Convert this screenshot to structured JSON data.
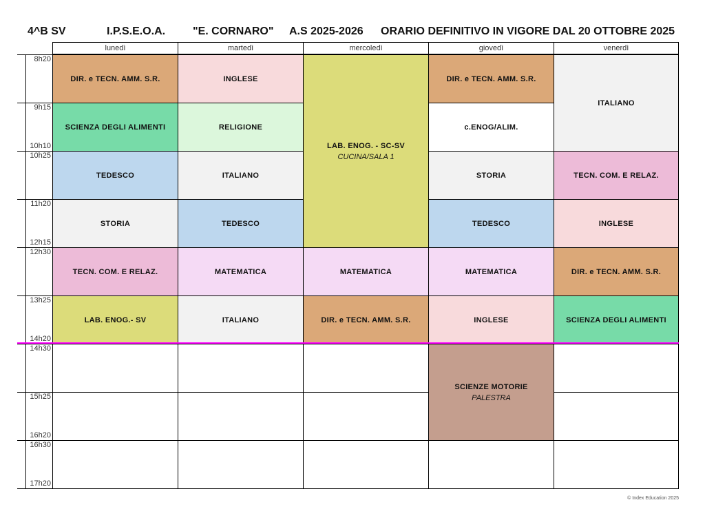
{
  "header": {
    "class": "4^B SV",
    "school_type": "I.P.S.E.O.A.",
    "school_name": "\"E. CORNARO\"",
    "year": "A.S 2025-2026",
    "notice": "ORARIO DEFINITIVO IN VIGORE DAL 20 OTTOBRE 2025"
  },
  "days": [
    "lunedì",
    "martedì",
    "mercoledì",
    "giovedì",
    "venerdì"
  ],
  "times": [
    {
      "label": "8h20",
      "row": 0,
      "pos": "top"
    },
    {
      "label": "9h15",
      "row": 1,
      "pos": "top"
    },
    {
      "label": "10h10",
      "row": 1,
      "pos": "bottom"
    },
    {
      "label": "10h25",
      "row": 2,
      "pos": "top"
    },
    {
      "label": "11h20",
      "row": 3,
      "pos": "top"
    },
    {
      "label": "12h15",
      "row": 3,
      "pos": "bottom"
    },
    {
      "label": "12h30",
      "row": 4,
      "pos": "top"
    },
    {
      "label": "13h25",
      "row": 5,
      "pos": "top"
    },
    {
      "label": "14h20",
      "row": 5,
      "pos": "bottom"
    },
    {
      "label": "14h30",
      "row": 6,
      "pos": "top"
    },
    {
      "label": "15h25",
      "row": 7,
      "pos": "top"
    },
    {
      "label": "16h20",
      "row": 7,
      "pos": "bottom"
    },
    {
      "label": "16h30",
      "row": 8,
      "pos": "top"
    },
    {
      "label": "17h20",
      "row": 8,
      "pos": "bottom"
    }
  ],
  "colors": {
    "dir": "#DBA878",
    "inglese": "#F8DADC",
    "scienza": "#77DBA8",
    "religione": "#DCF7DC",
    "lab": "#DCDC7A",
    "tedesco": "#BDD7EE",
    "gray": "#F2F2F2",
    "tecn": "#EDBBD8",
    "mate": "#F5DAF5",
    "motorie": "#C49E8E",
    "white": "#FFFFFF",
    "break_line": "#FF00FF"
  },
  "lessons": [
    {
      "day": 0,
      "row": 0,
      "span": 1,
      "subject": "DIR. e TECN. AMM. S.R.",
      "color": "dir"
    },
    {
      "day": 0,
      "row": 1,
      "span": 1,
      "subject": "SCIENZA DEGLI ALIMENTI",
      "color": "scienza"
    },
    {
      "day": 0,
      "row": 2,
      "span": 1,
      "subject": "TEDESCO",
      "color": "tedesco"
    },
    {
      "day": 0,
      "row": 3,
      "span": 1,
      "subject": "STORIA",
      "color": "gray"
    },
    {
      "day": 0,
      "row": 4,
      "span": 1,
      "subject": "TECN. COM. E RELAZ.",
      "color": "tecn"
    },
    {
      "day": 0,
      "row": 5,
      "span": 1,
      "subject": "LAB. ENOG.- SV",
      "color": "lab"
    },
    {
      "day": 1,
      "row": 0,
      "span": 1,
      "subject": "INGLESE",
      "color": "inglese"
    },
    {
      "day": 1,
      "row": 1,
      "span": 1,
      "subject": "RELIGIONE",
      "color": "religione"
    },
    {
      "day": 1,
      "row": 2,
      "span": 1,
      "subject": "ITALIANO",
      "color": "gray"
    },
    {
      "day": 1,
      "row": 3,
      "span": 1,
      "subject": "TEDESCO",
      "color": "tedesco"
    },
    {
      "day": 1,
      "row": 4,
      "span": 1,
      "subject": "MATEMATICA",
      "color": "mate"
    },
    {
      "day": 1,
      "row": 5,
      "span": 1,
      "subject": "ITALIANO",
      "color": "gray"
    },
    {
      "day": 2,
      "row": 0,
      "span": 4,
      "subject": "LAB. ENOG. - SC-SV",
      "room": "CUCINA/SALA 1",
      "color": "lab"
    },
    {
      "day": 2,
      "row": 4,
      "span": 1,
      "subject": "MATEMATICA",
      "color": "mate"
    },
    {
      "day": 2,
      "row": 5,
      "span": 1,
      "subject": "DIR. e TECN. AMM. S.R.",
      "color": "dir"
    },
    {
      "day": 3,
      "row": 0,
      "span": 1,
      "subject": "DIR. e TECN. AMM. S.R.",
      "color": "dir"
    },
    {
      "day": 3,
      "row": 1,
      "span": 1,
      "subject": "c.ENOG/ALIM.",
      "color": "white"
    },
    {
      "day": 3,
      "row": 2,
      "span": 1,
      "subject": "STORIA",
      "color": "gray"
    },
    {
      "day": 3,
      "row": 3,
      "span": 1,
      "subject": "TEDESCO",
      "color": "tedesco"
    },
    {
      "day": 3,
      "row": 4,
      "span": 1,
      "subject": "MATEMATICA",
      "color": "mate"
    },
    {
      "day": 3,
      "row": 5,
      "span": 1,
      "subject": "INGLESE",
      "color": "inglese"
    },
    {
      "day": 3,
      "row": 6,
      "span": 2,
      "subject": "SCIENZE MOTORIE",
      "room": "PALESTRA",
      "color": "motorie"
    },
    {
      "day": 4,
      "row": 0,
      "span": 2,
      "subject": "ITALIANO",
      "color": "gray"
    },
    {
      "day": 4,
      "row": 2,
      "span": 1,
      "subject": "TECN. COM. E RELAZ.",
      "color": "tecn"
    },
    {
      "day": 4,
      "row": 3,
      "span": 1,
      "subject": "INGLESE",
      "color": "inglese"
    },
    {
      "day": 4,
      "row": 4,
      "span": 1,
      "subject": "DIR. e TECN. AMM. S.R.",
      "color": "dir"
    },
    {
      "day": 4,
      "row": 5,
      "span": 1,
      "subject": "SCIENZA DEGLI ALIMENTI",
      "color": "scienza"
    }
  ],
  "footer": "© Index Education 2025"
}
